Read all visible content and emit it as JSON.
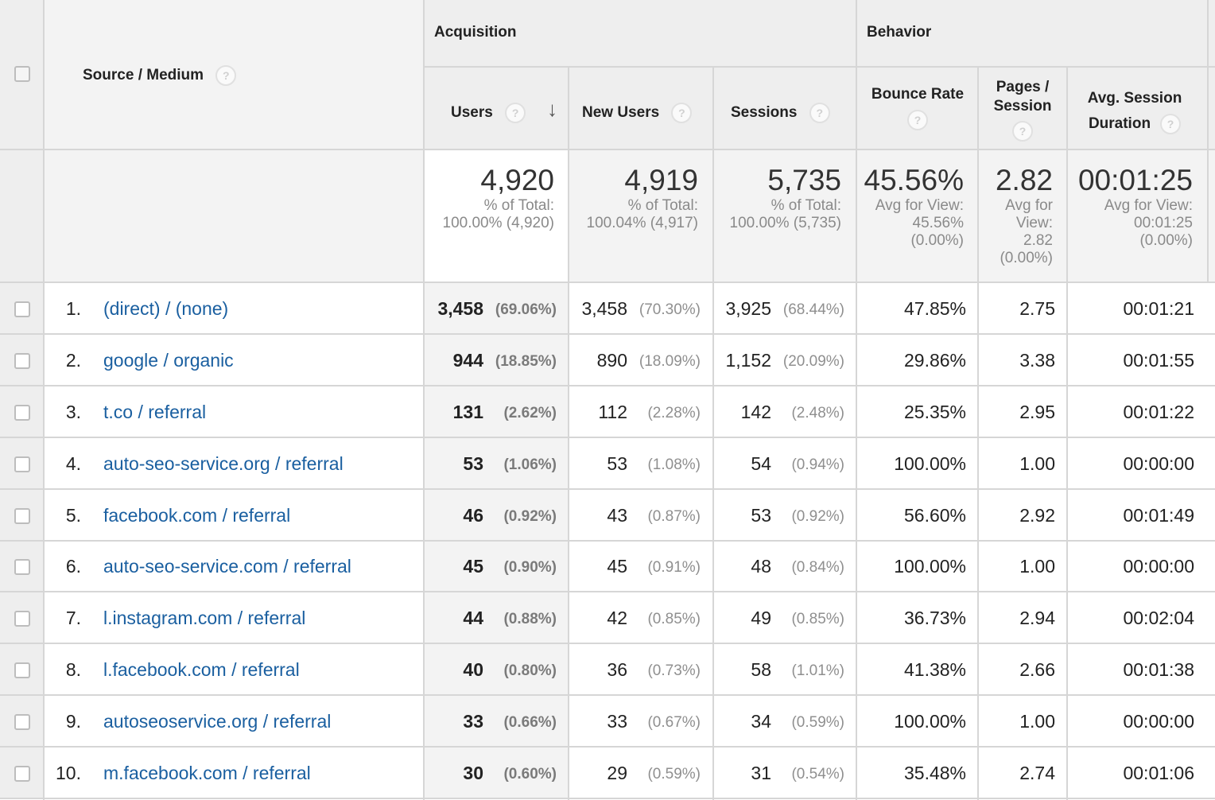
{
  "header": {
    "source_medium": "Source / Medium",
    "acquisition": "Acquisition",
    "behavior": "Behavior",
    "users": "Users",
    "new_users": "New Users",
    "sessions": "Sessions",
    "bounce_rate": "Bounce Rate",
    "pages_session_1": "Pages /",
    "pages_session_2": "Session",
    "avg_session_1": "Avg. Session",
    "avg_session_2": "Duration",
    "help": "?",
    "sort_arrow": "↓"
  },
  "totals": {
    "users": {
      "value": "4,920",
      "l1": "% of Total:",
      "l2": "100.00% (4,920)"
    },
    "new_users": {
      "value": "4,919",
      "l1": "% of Total:",
      "l2": "100.04% (4,917)"
    },
    "sessions": {
      "value": "5,735",
      "l1": "% of Total:",
      "l2": "100.00% (5,735)"
    },
    "bounce_rate": {
      "value": "45.56%",
      "l1": "Avg for View:",
      "l2": "45.56%",
      "l3": "(0.00%)"
    },
    "pages_session": {
      "value": "2.82",
      "l1": "Avg for",
      "l2": "View:",
      "l3": "2.82",
      "l4": "(0.00%)"
    },
    "avg_duration": {
      "value": "00:01:25",
      "l1": "Avg for View:",
      "l2": "00:01:25",
      "l3": "(0.00%)"
    }
  },
  "rows": [
    {
      "num": "1.",
      "source": "(direct) / (none)",
      "users": "3,458",
      "users_pct": "(69.06%)",
      "new_users": "3,458",
      "new_users_pct": "(70.30%)",
      "sessions": "3,925",
      "sessions_pct": "(68.44%)",
      "bounce": "47.85%",
      "pages": "2.75",
      "duration": "00:01:21"
    },
    {
      "num": "2.",
      "source": "google / organic",
      "users": "944",
      "users_pct": "(18.85%)",
      "new_users": "890",
      "new_users_pct": "(18.09%)",
      "sessions": "1,152",
      "sessions_pct": "(20.09%)",
      "bounce": "29.86%",
      "pages": "3.38",
      "duration": "00:01:55"
    },
    {
      "num": "3.",
      "source": "t.co / referral",
      "users": "131",
      "users_pct": "(2.62%)",
      "new_users": "112",
      "new_users_pct": "(2.28%)",
      "sessions": "142",
      "sessions_pct": "(2.48%)",
      "bounce": "25.35%",
      "pages": "2.95",
      "duration": "00:01:22"
    },
    {
      "num": "4.",
      "source": "auto-seo-service.org / referral",
      "users": "53",
      "users_pct": "(1.06%)",
      "new_users": "53",
      "new_users_pct": "(1.08%)",
      "sessions": "54",
      "sessions_pct": "(0.94%)",
      "bounce": "100.00%",
      "pages": "1.00",
      "duration": "00:00:00"
    },
    {
      "num": "5.",
      "source": "facebook.com / referral",
      "users": "46",
      "users_pct": "(0.92%)",
      "new_users": "43",
      "new_users_pct": "(0.87%)",
      "sessions": "53",
      "sessions_pct": "(0.92%)",
      "bounce": "56.60%",
      "pages": "2.92",
      "duration": "00:01:49"
    },
    {
      "num": "6.",
      "source": "auto-seo-service.com / referral",
      "users": "45",
      "users_pct": "(0.90%)",
      "new_users": "45",
      "new_users_pct": "(0.91%)",
      "sessions": "48",
      "sessions_pct": "(0.84%)",
      "bounce": "100.00%",
      "pages": "1.00",
      "duration": "00:00:00"
    },
    {
      "num": "7.",
      "source": "l.instagram.com / referral",
      "users": "44",
      "users_pct": "(0.88%)",
      "new_users": "42",
      "new_users_pct": "(0.85%)",
      "sessions": "49",
      "sessions_pct": "(0.85%)",
      "bounce": "36.73%",
      "pages": "2.94",
      "duration": "00:02:04"
    },
    {
      "num": "8.",
      "source": "l.facebook.com / referral",
      "users": "40",
      "users_pct": "(0.80%)",
      "new_users": "36",
      "new_users_pct": "(0.73%)",
      "sessions": "58",
      "sessions_pct": "(1.01%)",
      "bounce": "41.38%",
      "pages": "2.66",
      "duration": "00:01:38"
    },
    {
      "num": "9.",
      "source": "autoseoservice.org / referral",
      "users": "33",
      "users_pct": "(0.66%)",
      "new_users": "33",
      "new_users_pct": "(0.67%)",
      "sessions": "34",
      "sessions_pct": "(0.59%)",
      "bounce": "100.00%",
      "pages": "1.00",
      "duration": "00:00:00"
    },
    {
      "num": "10.",
      "source": "m.facebook.com / referral",
      "users": "30",
      "users_pct": "(0.60%)",
      "new_users": "29",
      "new_users_pct": "(0.59%)",
      "sessions": "31",
      "sessions_pct": "(0.54%)",
      "bounce": "35.48%",
      "pages": "2.74",
      "duration": "00:01:06"
    }
  ]
}
